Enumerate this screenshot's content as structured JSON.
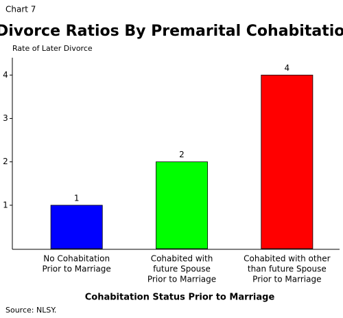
{
  "chart_data": {
    "type": "bar",
    "chart_label": "Chart 7",
    "title": "Divorce Ratios By Premarital Cohabitation",
    "y_label": "Rate of Later Divorce",
    "x_label": "Cohabitation Status Prior to Marriage",
    "source": "Source: NLSY.",
    "categories": [
      [
        "No Cohabitation",
        "Prior to Marriage"
      ],
      [
        "Cohabited with",
        "future Spouse",
        "Prior to Marriage"
      ],
      [
        "Cohabited with other",
        "than future Spouse",
        "Prior to Marriage"
      ]
    ],
    "values": [
      1,
      2,
      4
    ],
    "colors": [
      "#0000ff",
      "#00ff00",
      "#ff0000"
    ],
    "ylim": [
      0,
      4.4
    ],
    "yticks": [
      1,
      2,
      3,
      4
    ]
  }
}
